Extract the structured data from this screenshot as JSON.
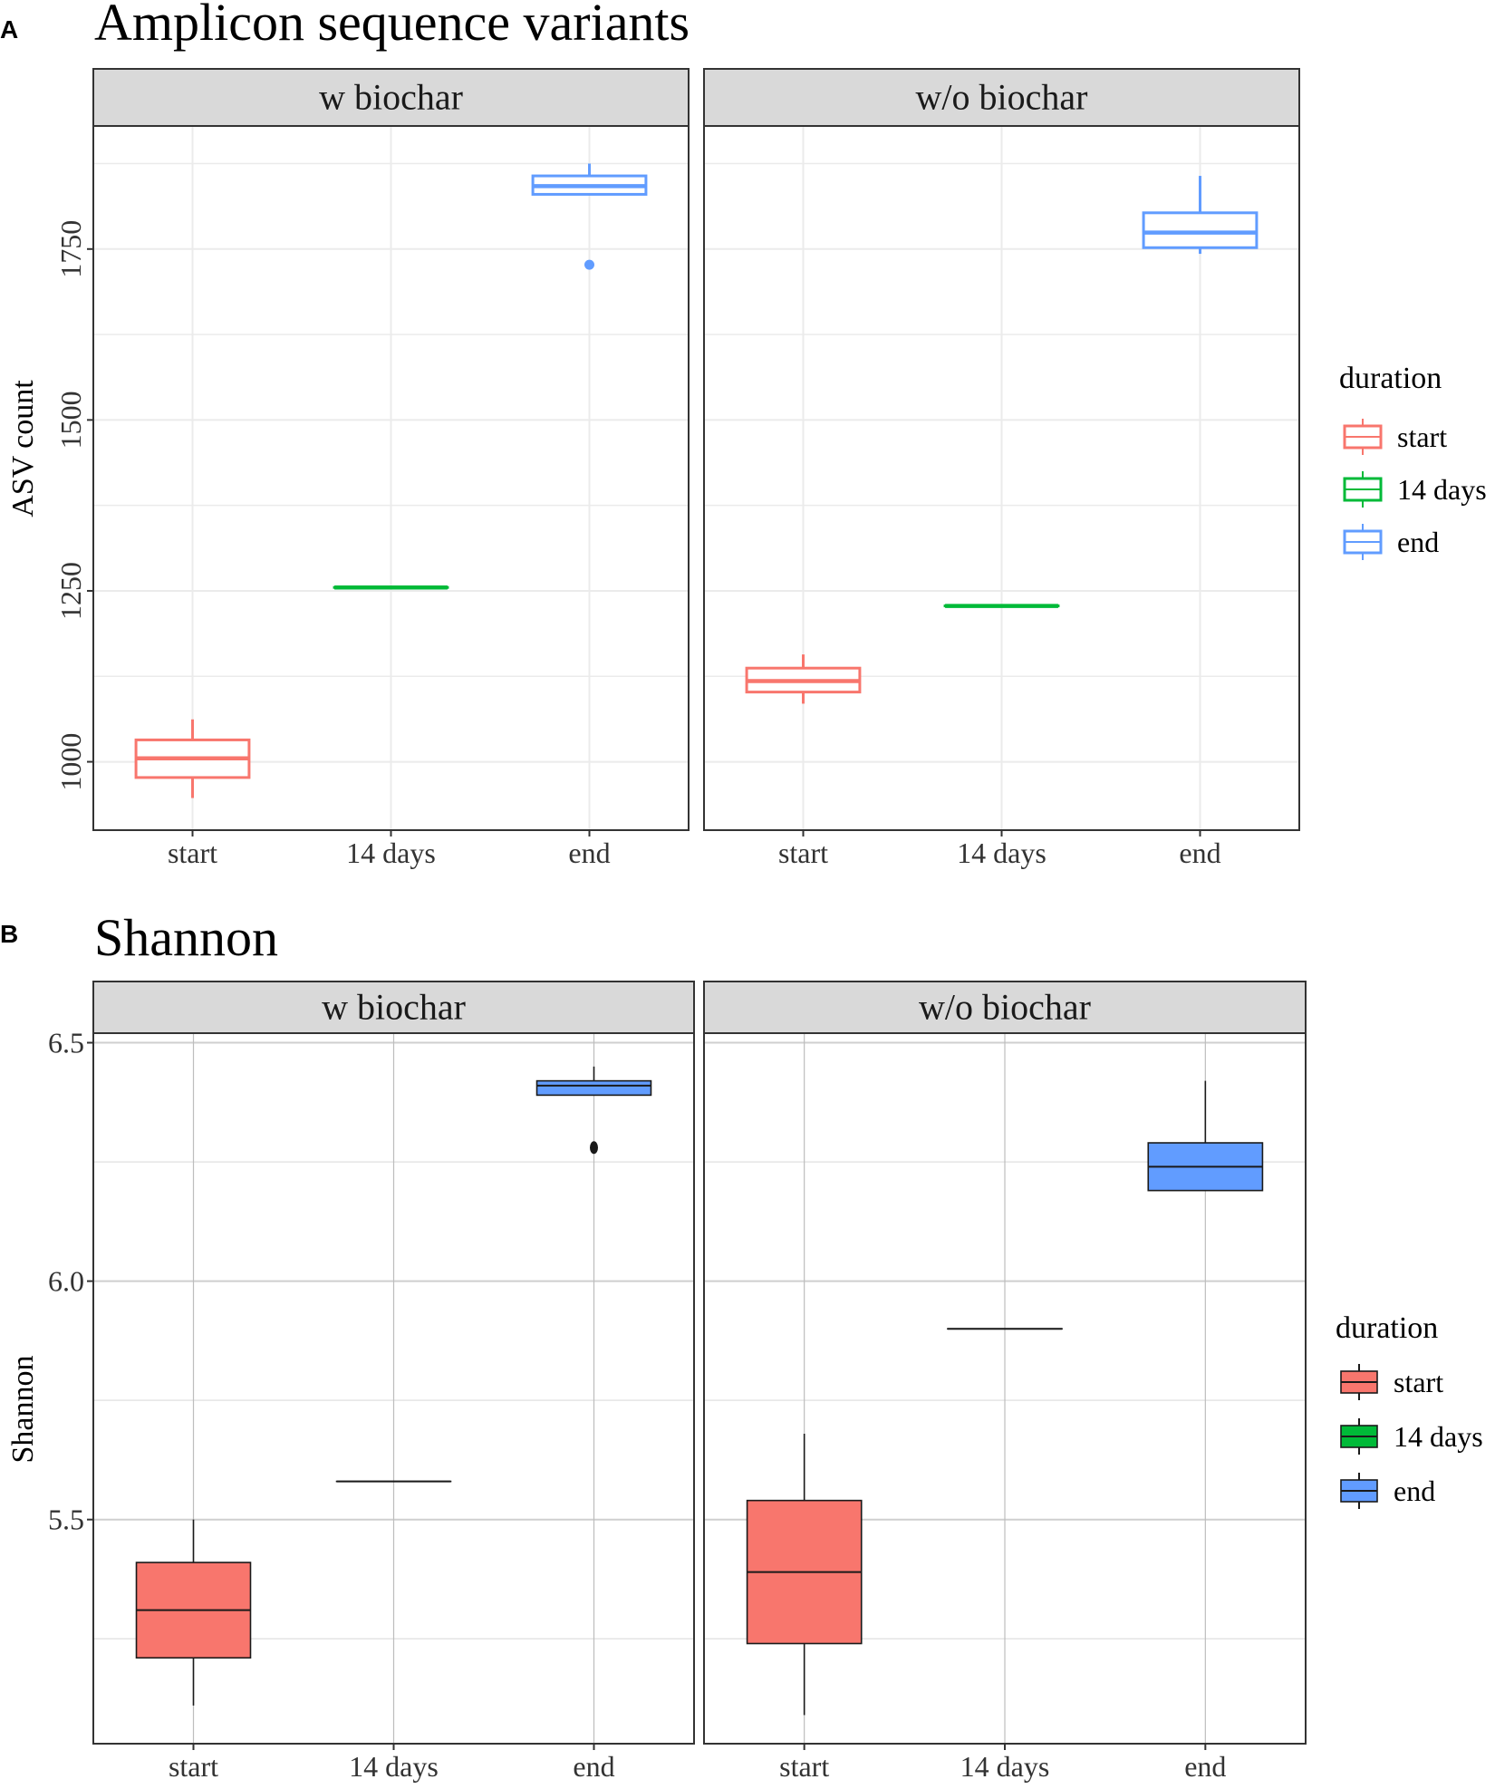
{
  "chart_data": [
    {
      "panel_label": "A",
      "type": "boxplot",
      "title": "Amplicon sequence variants",
      "ylabel": "ASV count",
      "xlabel": "",
      "style": "outline",
      "ylim": [
        900,
        1930
      ],
      "yticks": [
        1000,
        1250,
        1500,
        1750
      ],
      "grid": true,
      "categories": [
        "start",
        "14 days",
        "end"
      ],
      "facets": [
        {
          "label": "w biochar",
          "boxes": [
            {
              "category": "start",
              "min": 947,
              "q1": 977,
              "median": 1005,
              "q3": 1032,
              "max": 1062,
              "outliers": []
            },
            {
              "category": "14 days",
              "min": 1255,
              "q1": 1255,
              "median": 1255,
              "q3": 1255,
              "max": 1255,
              "outliers": []
            },
            {
              "category": "end",
              "min": 1830,
              "q1": 1830,
              "median": 1842,
              "q3": 1857,
              "max": 1875,
              "outliers": [
                1727
              ]
            }
          ]
        },
        {
          "label": "w/o biochar",
          "boxes": [
            {
              "category": "start",
              "min": 1085,
              "q1": 1102,
              "median": 1118,
              "q3": 1137,
              "max": 1157,
              "outliers": []
            },
            {
              "category": "14 days",
              "min": 1228,
              "q1": 1228,
              "median": 1228,
              "q3": 1228,
              "max": 1228,
              "outliers": []
            },
            {
              "category": "end",
              "min": 1743,
              "q1": 1752,
              "median": 1774,
              "q3": 1803,
              "max": 1857,
              "outliers": []
            }
          ]
        }
      ],
      "legend": {
        "title": "duration",
        "position": "right",
        "items": [
          {
            "label": "start",
            "color": "#F8766D"
          },
          {
            "label": "14 days",
            "color": "#00BA38"
          },
          {
            "label": "end",
            "color": "#619CFF"
          }
        ]
      }
    },
    {
      "panel_label": "B",
      "type": "boxplot",
      "title": "Shannon",
      "ylabel": "Shannon",
      "xlabel": "",
      "style": "filled",
      "ylim": [
        5.03,
        6.52
      ],
      "yticks": [
        5.5,
        6.0,
        6.5
      ],
      "ytick_labels": [
        "5.5",
        "6.0",
        "6.5"
      ],
      "grid": true,
      "categories": [
        "start",
        "14 days",
        "end"
      ],
      "facets": [
        {
          "label": "w biochar",
          "boxes": [
            {
              "category": "start",
              "min": 5.11,
              "q1": 5.21,
              "median": 5.31,
              "q3": 5.41,
              "max": 5.5,
              "outliers": []
            },
            {
              "category": "14 days",
              "min": 5.58,
              "q1": 5.58,
              "median": 5.58,
              "q3": 5.58,
              "max": 5.58,
              "outliers": []
            },
            {
              "category": "end",
              "min": 6.39,
              "q1": 6.39,
              "median": 6.41,
              "q3": 6.42,
              "max": 6.45,
              "outliers": [
                6.28
              ]
            }
          ]
        },
        {
          "label": "w/o biochar",
          "boxes": [
            {
              "category": "start",
              "min": 5.09,
              "q1": 5.24,
              "median": 5.39,
              "q3": 5.54,
              "max": 5.68,
              "outliers": []
            },
            {
              "category": "14 days",
              "min": 5.9,
              "q1": 5.9,
              "median": 5.9,
              "q3": 5.9,
              "max": 5.9,
              "outliers": []
            },
            {
              "category": "end",
              "min": 6.19,
              "q1": 6.19,
              "median": 6.24,
              "q3": 6.29,
              "max": 6.42,
              "outliers": []
            }
          ]
        }
      ],
      "legend": {
        "title": "duration",
        "position": "right",
        "items": [
          {
            "label": "start",
            "color": "#F8766D"
          },
          {
            "label": "14 days",
            "color": "#00BA38"
          },
          {
            "label": "end",
            "color": "#619CFF"
          }
        ]
      }
    }
  ]
}
